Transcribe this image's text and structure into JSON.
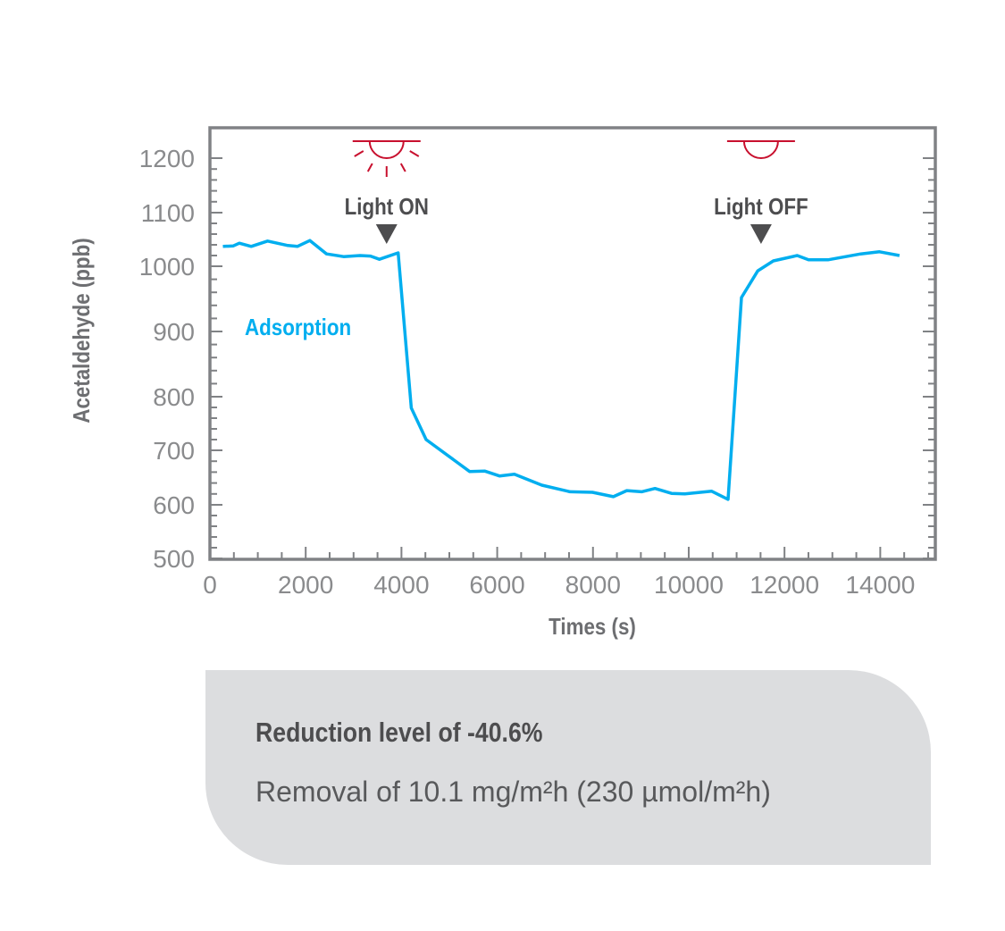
{
  "chart_data": {
    "type": "line",
    "title": "",
    "xlabel": "Times (s)",
    "ylabel": "Acetaldehyde (ppb)",
    "xlim": [
      0,
      15150
    ],
    "ylim": [
      500,
      1250
    ],
    "x_ticks": [
      0,
      2000,
      4000,
      6000,
      8000,
      10000,
      12000,
      14000
    ],
    "y_ticks": [
      500,
      600,
      700,
      800,
      900,
      1000,
      1100,
      1200
    ],
    "grid": false,
    "series": [
      {
        "name": "Adsorption",
        "color": "#00aeef",
        "x": [
          271,
          489,
          613,
          862,
          1204,
          1609,
          1827,
          2088,
          2437,
          2792,
          3134,
          3352,
          3539,
          3931,
          4206,
          4515,
          5425,
          5737,
          6047,
          6359,
          6932,
          7522,
          7989,
          8426,
          8706,
          9016,
          9296,
          9640,
          9920,
          10480,
          10822,
          11102,
          11443,
          11768,
          12265,
          12502,
          12907,
          13591,
          13983,
          14401
        ],
        "y": [
          1037,
          1038,
          1043,
          1037,
          1047,
          1039,
          1037,
          1048,
          1023,
          1018,
          1020,
          1019,
          1013,
          1025,
          779,
          720,
          661,
          662,
          653,
          656,
          636,
          624,
          623,
          615,
          626,
          624,
          630,
          621,
          620,
          625,
          610,
          952,
          993,
          1010,
          1020,
          1012,
          1012,
          1023,
          1027,
          1020
        ]
      }
    ],
    "annotations": [
      {
        "text": "Light ON",
        "x": 3690,
        "icon": "light-on-icon"
      },
      {
        "text": "Light OFF",
        "x": 11510,
        "icon": "light-off-icon"
      }
    ],
    "colors": {
      "accent": "#00aeef",
      "lamp": "#c8102e",
      "frame": "#808285",
      "marker": "#4d4d4f"
    }
  },
  "summary": {
    "headline": "Reduction level of -40.6%",
    "detail": "Removal of 10.1 mg/m²h (230 µmol/m²h)"
  }
}
